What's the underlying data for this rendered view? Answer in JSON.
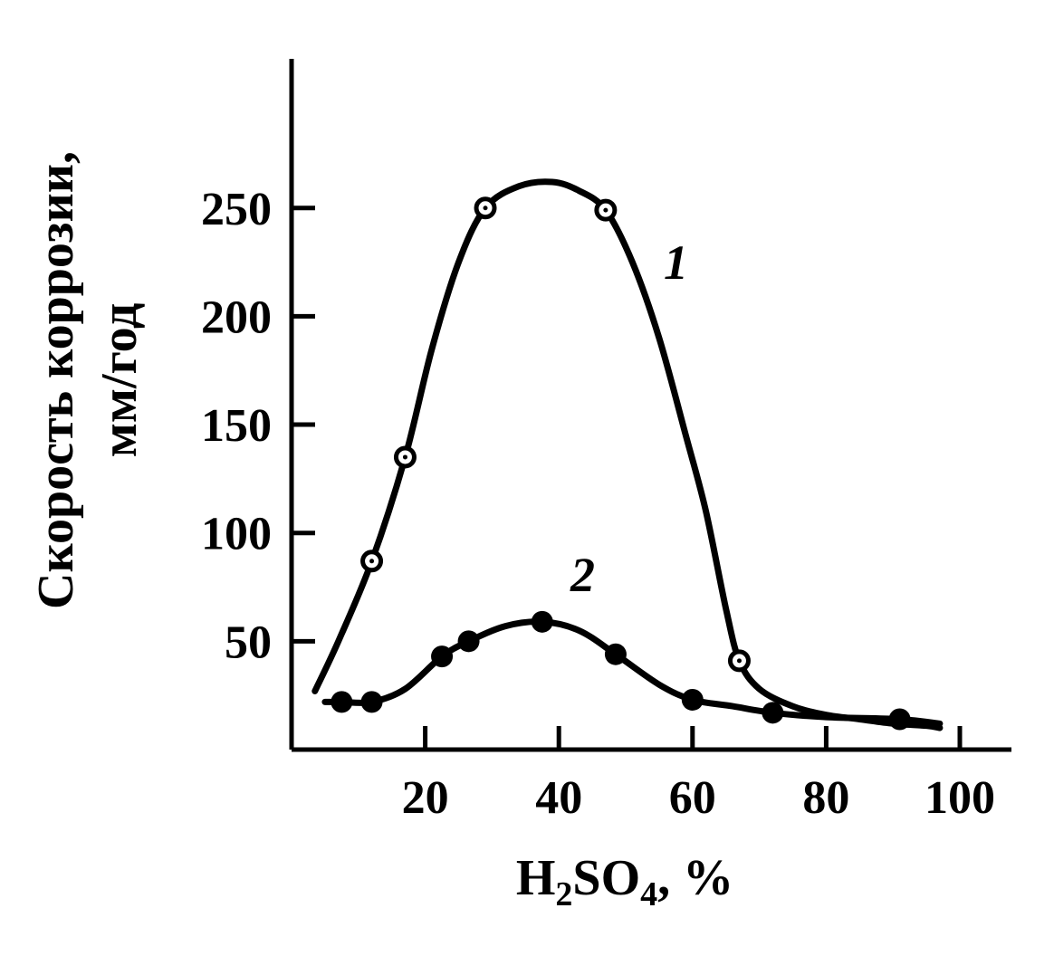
{
  "chart_data": {
    "type": "line",
    "ylabel_line1": "Скорость коррозии,",
    "ylabel_line2": "мм/год",
    "xlabel_main": "H",
    "xlabel_sub1": "2",
    "xlabel_mid": "SO",
    "xlabel_sub2": "4",
    "xlabel_tail": ",  %",
    "xlim": [
      0,
      110
    ],
    "ylim": [
      0,
      310
    ],
    "xticks": [
      20,
      40,
      60,
      80,
      100
    ],
    "yticks": [
      50,
      100,
      150,
      200,
      250
    ],
    "xtick_labels": [
      "20",
      "40",
      "60",
      "80",
      "100"
    ],
    "ytick_labels": [
      "50",
      "100",
      "150",
      "200",
      "250"
    ],
    "series": [
      {
        "name": "1",
        "marker": "open-circle",
        "points": [
          [
            12,
            87
          ],
          [
            17,
            135
          ],
          [
            29,
            250
          ],
          [
            47,
            249
          ],
          [
            67,
            41
          ]
        ],
        "curve": [
          [
            3.5,
            27
          ],
          [
            7,
            50
          ],
          [
            12,
            87
          ],
          [
            17,
            135
          ],
          [
            21,
            185
          ],
          [
            25,
            225
          ],
          [
            29,
            250
          ],
          [
            34,
            260
          ],
          [
            39,
            262
          ],
          [
            43,
            258
          ],
          [
            47,
            249
          ],
          [
            51,
            225
          ],
          [
            55,
            190
          ],
          [
            59,
            145
          ],
          [
            62,
            110
          ],
          [
            65,
            65
          ],
          [
            67,
            41
          ],
          [
            70,
            28
          ],
          [
            75,
            20
          ],
          [
            80,
            16
          ],
          [
            85,
            14
          ],
          [
            90,
            12
          ],
          [
            95,
            11
          ],
          [
            97,
            10
          ]
        ]
      },
      {
        "name": "2",
        "marker": "filled-circle",
        "points": [
          [
            7.5,
            22
          ],
          [
            12,
            22
          ],
          [
            22.5,
            43
          ],
          [
            26.5,
            50
          ],
          [
            37.5,
            59
          ],
          [
            48.5,
            44
          ],
          [
            60,
            23
          ],
          [
            72,
            17
          ],
          [
            91,
            14
          ]
        ],
        "curve": [
          [
            5,
            22
          ],
          [
            7.5,
            22
          ],
          [
            12,
            22
          ],
          [
            17,
            28
          ],
          [
            22.5,
            43
          ],
          [
            26.5,
            50
          ],
          [
            32,
            57
          ],
          [
            37.5,
            59
          ],
          [
            43,
            55
          ],
          [
            48.5,
            44
          ],
          [
            55,
            30
          ],
          [
            60,
            23
          ],
          [
            66,
            20
          ],
          [
            72,
            17
          ],
          [
            80,
            15
          ],
          [
            91,
            14
          ],
          [
            97,
            12
          ]
        ]
      }
    ]
  }
}
